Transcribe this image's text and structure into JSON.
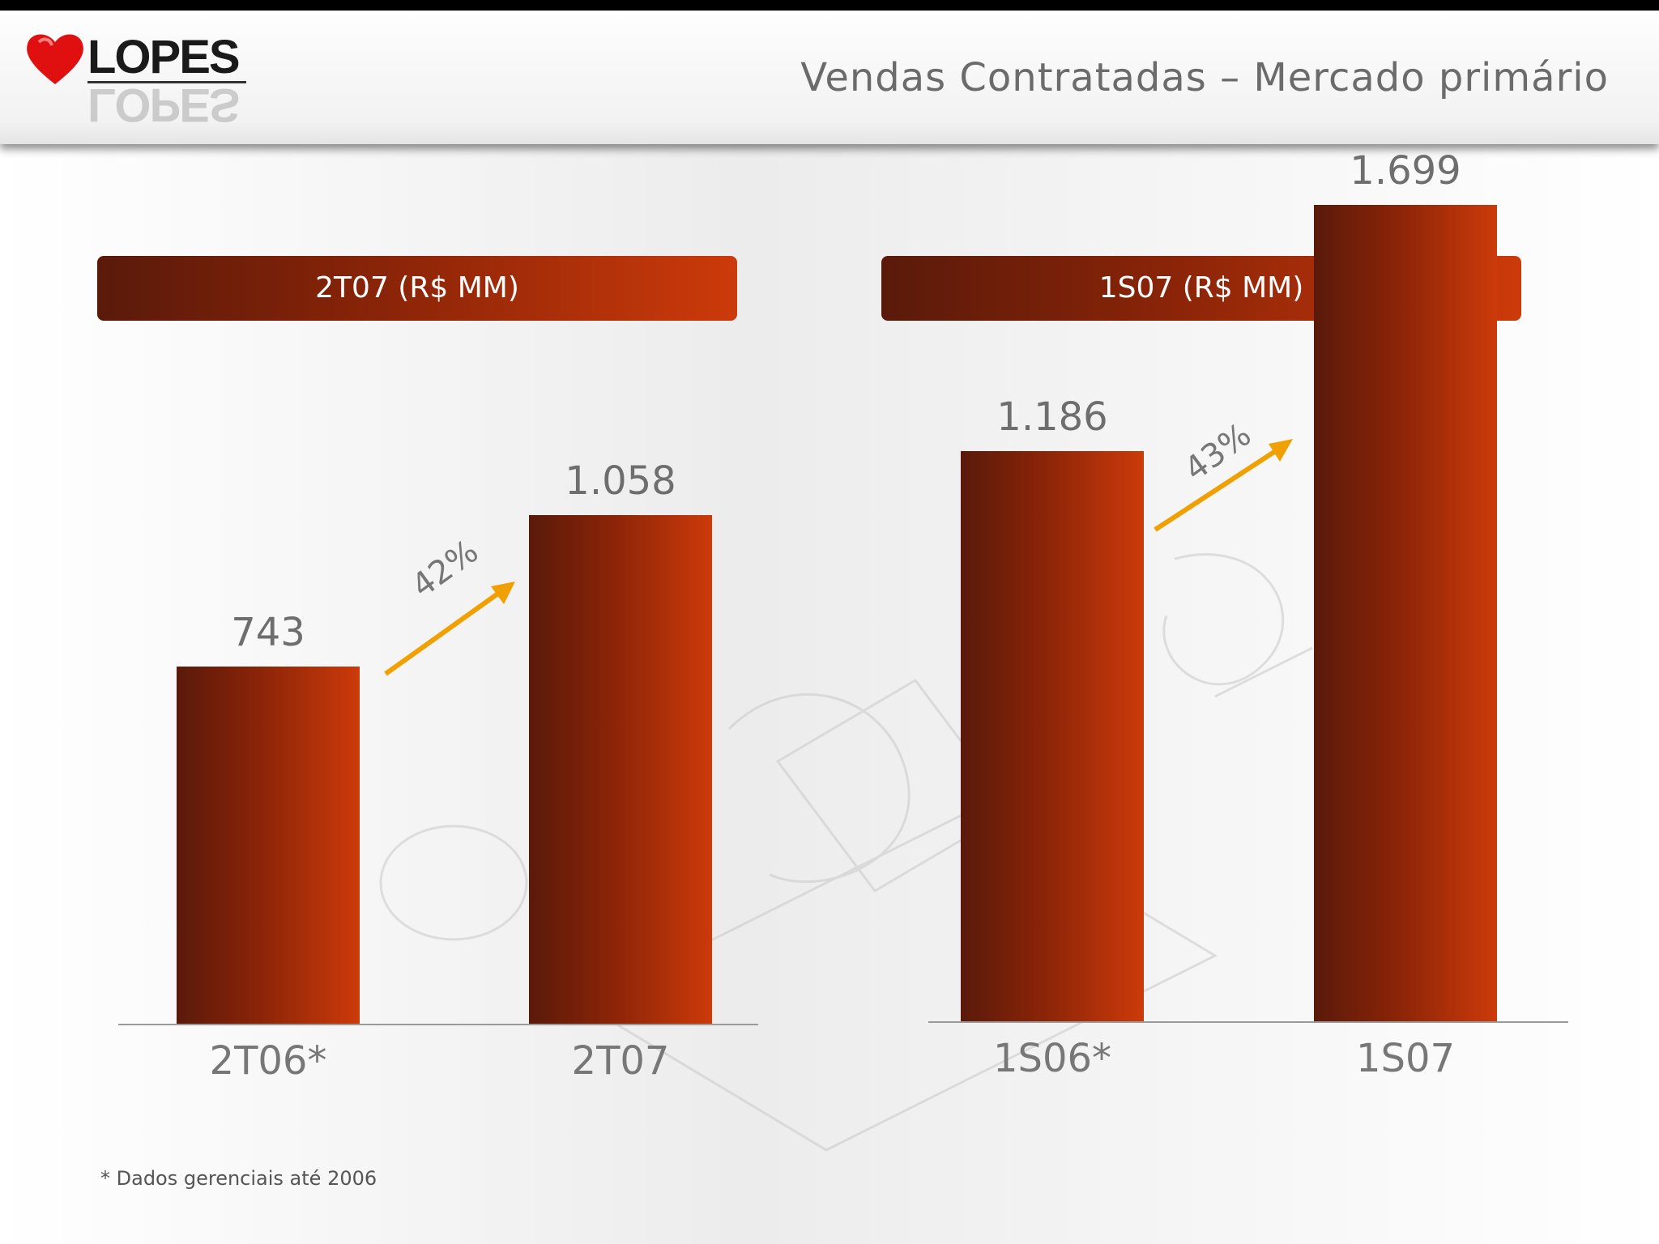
{
  "header": {
    "logo_text": "LOPES",
    "title": "Vendas Contratadas – Mercado primário"
  },
  "colors": {
    "bar_dark": "#5a1a0a",
    "bar_light": "#cc3a0a",
    "arrow": "#f0a000",
    "logo_heart": "#e01010"
  },
  "footnote": "* Dados gerenciais até 2006",
  "chart_data": [
    {
      "type": "bar",
      "title": "2T07 (R$ MM)",
      "categories": [
        "2T06*",
        "2T07"
      ],
      "values": [
        743,
        1058
      ],
      "value_labels": [
        "743",
        "1.058"
      ],
      "growth_label": "42%",
      "ylim": [
        0,
        1800
      ]
    },
    {
      "type": "bar",
      "title": "1S07 (R$ MM)",
      "categories": [
        "1S06*",
        "1S07"
      ],
      "values": [
        1186,
        1699
      ],
      "value_labels": [
        "1.186",
        "1.699"
      ],
      "growth_label": "43%",
      "ylim": [
        0,
        1800
      ]
    }
  ]
}
